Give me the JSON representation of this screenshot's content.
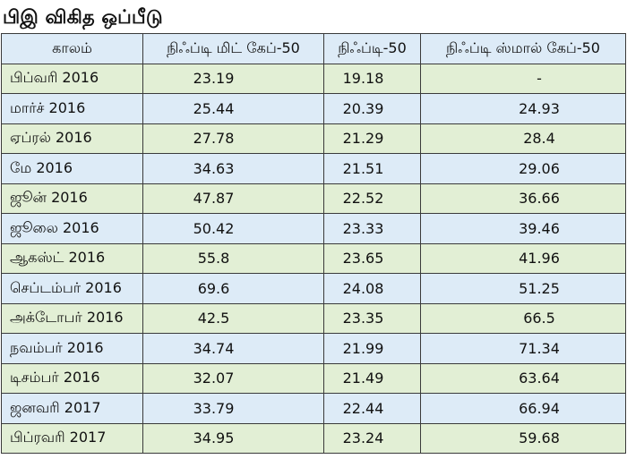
{
  "title": "பிஇ விகித ஒப்பீடு",
  "table": {
    "headers": [
      "காலம்",
      "நிஃப்டி மிட் கேப்-50",
      "நிஃப்டி-50",
      "நிஃப்டி ஸ்மால் கேப்-50"
    ],
    "rows": [
      {
        "period": "பிப்வரி 2016",
        "midcap": "23.19",
        "nifty50": "19.18",
        "smallcap": "-"
      },
      {
        "period": "மார்ச் 2016",
        "midcap": "25.44",
        "nifty50": "20.39",
        "smallcap": "24.93"
      },
      {
        "period": "ஏப்ரல் 2016",
        "midcap": "27.78",
        "nifty50": "21.29",
        "smallcap": "28.4"
      },
      {
        "period": "மே 2016",
        "midcap": "34.63",
        "nifty50": "21.51",
        "smallcap": "29.06"
      },
      {
        "period": "ஜூன் 2016",
        "midcap": "47.87",
        "nifty50": "22.52",
        "smallcap": "36.66"
      },
      {
        "period": "ஜூலை 2016",
        "midcap": "50.42",
        "nifty50": "23.33",
        "smallcap": "39.46"
      },
      {
        "period": "ஆகஸ்ட் 2016",
        "midcap": "55.8",
        "nifty50": "23.65",
        "smallcap": "41.96"
      },
      {
        "period": "செப்டம்பர் 2016",
        "midcap": "69.6",
        "nifty50": "24.08",
        "smallcap": "51.25"
      },
      {
        "period": "அக்டோபர் 2016",
        "midcap": "42.5",
        "nifty50": "23.35",
        "smallcap": "66.5"
      },
      {
        "period": "நவம்பர் 2016",
        "midcap": "34.74",
        "nifty50": "21.99",
        "smallcap": "71.34"
      },
      {
        "period": "டிசம்பர் 2016",
        "midcap": "32.07",
        "nifty50": "21.49",
        "smallcap": "63.64"
      },
      {
        "period": "ஜனவரி 2017",
        "midcap": "33.79",
        "nifty50": "22.44",
        "smallcap": "66.94"
      },
      {
        "period": "பிப்ரவரி 2017",
        "midcap": "34.95",
        "nifty50": "23.24",
        "smallcap": "59.68"
      }
    ]
  },
  "colors": {
    "row_green": "#e2efd5",
    "row_blue": "#ddebf7",
    "border": "#3a3a3a",
    "text": "#111111"
  }
}
